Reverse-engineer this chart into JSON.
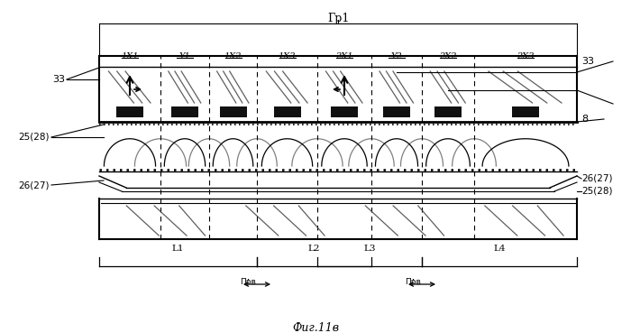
{
  "fig_width": 7.0,
  "fig_height": 3.69,
  "dpi": 100,
  "bg_color": "#ffffff",
  "title_label": "Фиг.11в",
  "group_label": "Гр1",
  "col_names": [
    "1X1",
    "Y1",
    "1X2",
    "1X3",
    "2X1",
    "Y2",
    "2X2",
    "2X3"
  ],
  "label_33_left": "33",
  "label_33_right": "33",
  "label_8": "8",
  "label_25_28_left": "25(28)",
  "label_26_27_left": "26(27)",
  "label_26_27_right": "26(27)",
  "label_25_28_right": "25(28)",
  "L_labels": [
    "L1",
    "L2",
    "L3",
    "L4"
  ],
  "prv_label": "Прв",
  "lc": "#000000"
}
